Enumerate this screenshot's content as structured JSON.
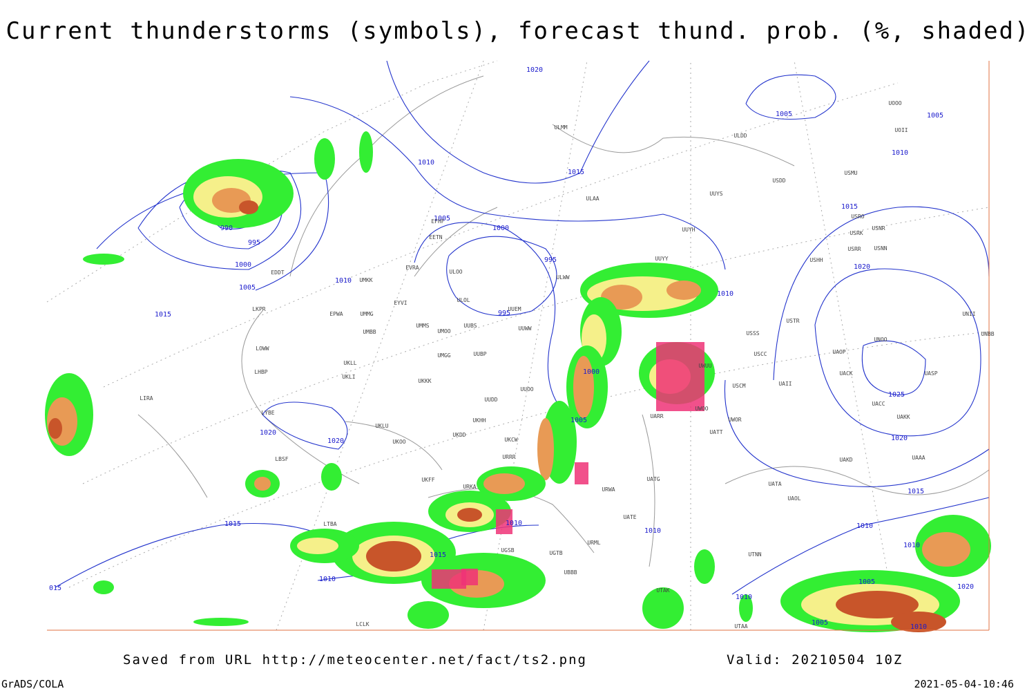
{
  "header": {
    "title": "Current thunderstorms (symbols), forecast thund. prob. (%, shaded)"
  },
  "footer": {
    "source": "Saved from URL http://meteocenter.net/fact/ts2.png",
    "valid": "Valid: 20210504 10Z",
    "software": "GrADS/COLA",
    "timestamp": "2021-05-04-10:46"
  },
  "isobar_labels": [
    "1020",
    "1005",
    "1005",
    "1010",
    "1010",
    "1015",
    "990",
    "995",
    "1000",
    "1005",
    "1015",
    "1005",
    "1000",
    "995",
    "1010",
    "1020",
    "995",
    "1010",
    "1015",
    "1000",
    "1025",
    "1005",
    "1020",
    "1020",
    "1020",
    "1015",
    "1015",
    "1010",
    "1010",
    "1010",
    "1015",
    "1010",
    "1005",
    "1010",
    "1020",
    "1010",
    "1005",
    "1010",
    "015"
  ],
  "stations": [
    "ULMM",
    "ULDD",
    "UOOO",
    "UOII",
    "USMU",
    "USDD",
    "UUYS",
    "ULAA",
    "UUYH",
    "USRO",
    "USRK",
    "USNR",
    "USRR",
    "USNN",
    "USHH",
    "UUYY",
    "EFHF",
    "EETN",
    "EVRA",
    "ULOO",
    "ULOL",
    "UUEM",
    "ULWW",
    "UMKK",
    "EYVI",
    "EPWA",
    "UMMG",
    "UMMS",
    "UMOO",
    "UUBS",
    "UUWW",
    "UMBB",
    "USSS",
    "USTR",
    "LKPR",
    "LOWW",
    "LHBP",
    "UKLL",
    "UKLI",
    "UMGG",
    "UUBP",
    "UKKK",
    "UUOO",
    "UUDD",
    "UWUU",
    "USCC",
    "USCM",
    "UAII",
    "UACC",
    "UAKK",
    "UASP",
    "UACK",
    "UAOP",
    "UNOO",
    "UNBB",
    "UNII",
    "LIRA",
    "LYBE",
    "UKLU",
    "UKHH",
    "UKDD",
    "UKOO",
    "UKCW",
    "URRR",
    "UWOO",
    "UWOR",
    "UATT",
    "UARR",
    "UAKD",
    "UAAA",
    "LBSF",
    "UKFF",
    "URKA",
    "UATG",
    "URWA",
    "UATA",
    "UAOL",
    "UATE",
    "LTBA",
    "URML",
    "UTNN",
    "UGSB",
    "UGTB",
    "UBBB",
    "UTAK",
    "UTAA",
    "LCLK",
    "EDDT"
  ]
}
